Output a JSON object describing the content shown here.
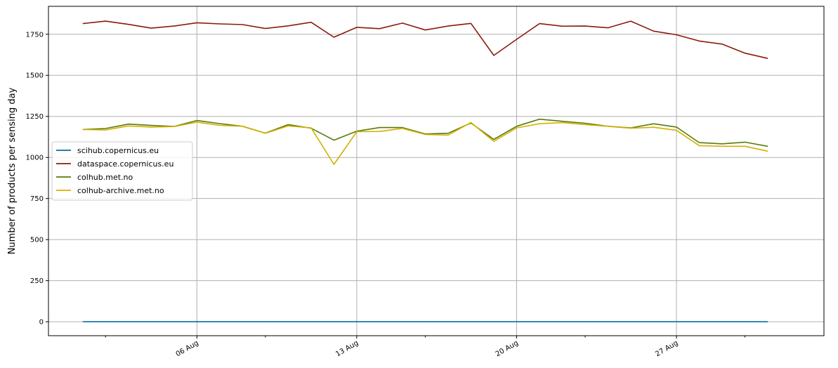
{
  "chart_data": {
    "type": "line",
    "ylabel": "Number of products per sensing day",
    "xlabel": "",
    "ylim": [
      -85,
      1920
    ],
    "yticks": [
      0,
      250,
      500,
      750,
      1000,
      1250,
      1500,
      1750
    ],
    "x_dates": [
      "2023-08-01",
      "2023-08-02",
      "2023-08-03",
      "2023-08-04",
      "2023-08-05",
      "2023-08-06",
      "2023-08-07",
      "2023-08-08",
      "2023-08-09",
      "2023-08-10",
      "2023-08-11",
      "2023-08-12",
      "2023-08-13",
      "2023-08-14",
      "2023-08-15",
      "2023-08-16",
      "2023-08-17",
      "2023-08-18",
      "2023-08-19",
      "2023-08-20",
      "2023-08-21",
      "2023-08-22",
      "2023-08-23",
      "2023-08-24",
      "2023-08-25",
      "2023-08-26",
      "2023-08-27",
      "2023-08-28",
      "2023-08-29",
      "2023-08-30",
      "2023-08-31"
    ],
    "xlim": [
      "2023-07-30T12:00",
      "2023-09-02T11:00"
    ],
    "major_ticks": [
      {
        "date": "2023-08-06",
        "label": "06 Aug"
      },
      {
        "date": "2023-08-13",
        "label": "13 Aug"
      },
      {
        "date": "2023-08-20",
        "label": "20 Aug"
      },
      {
        "date": "2023-08-27",
        "label": "27 Aug"
      }
    ],
    "minor_ticks": [
      "2023-08-02",
      "2023-08-09",
      "2023-08-16",
      "2023-08-23",
      "2023-08-30"
    ],
    "grid": true,
    "legend_position": "center-left",
    "series": [
      {
        "name": "scihub.copernicus.eu",
        "color": "#0a6f9e",
        "values": [
          0,
          0,
          0,
          0,
          0,
          0,
          0,
          0,
          0,
          0,
          0,
          0,
          0,
          0,
          0,
          0,
          0,
          0,
          0,
          0,
          0,
          0,
          0,
          0,
          0,
          0,
          0,
          0,
          0,
          0,
          0
        ]
      },
      {
        "name": "dataspace.copernicus.eu",
        "color": "#8b1a0e",
        "values": [
          1815,
          1830,
          1810,
          1787,
          1800,
          1820,
          1813,
          1809,
          1785,
          1801,
          1823,
          1732,
          1792,
          1784,
          1818,
          1776,
          1800,
          1816,
          1621,
          1719,
          1815,
          1799,
          1800,
          1789,
          1830,
          1769,
          1747,
          1709,
          1690,
          1635,
          1603
        ]
      },
      {
        "name": "colhub.met.no",
        "color": "#5a7a0a",
        "values": [
          1170,
          1176,
          1203,
          1195,
          1189,
          1225,
          1206,
          1190,
          1148,
          1200,
          1178,
          1105,
          1160,
          1182,
          1182,
          1143,
          1147,
          1210,
          1110,
          1190,
          1233,
          1220,
          1208,
          1190,
          1180,
          1205,
          1185,
          1090,
          1083,
          1093,
          1068
        ]
      },
      {
        "name": "colhub-archive.met.no",
        "color": "#d4b000",
        "values": [
          1170,
          1167,
          1192,
          1185,
          1188,
          1215,
          1196,
          1190,
          1147,
          1192,
          1180,
          958,
          1157,
          1158,
          1177,
          1140,
          1136,
          1213,
          1098,
          1180,
          1205,
          1212,
          1200,
          1190,
          1178,
          1184,
          1165,
          1072,
          1068,
          1068,
          1038
        ]
      }
    ]
  }
}
